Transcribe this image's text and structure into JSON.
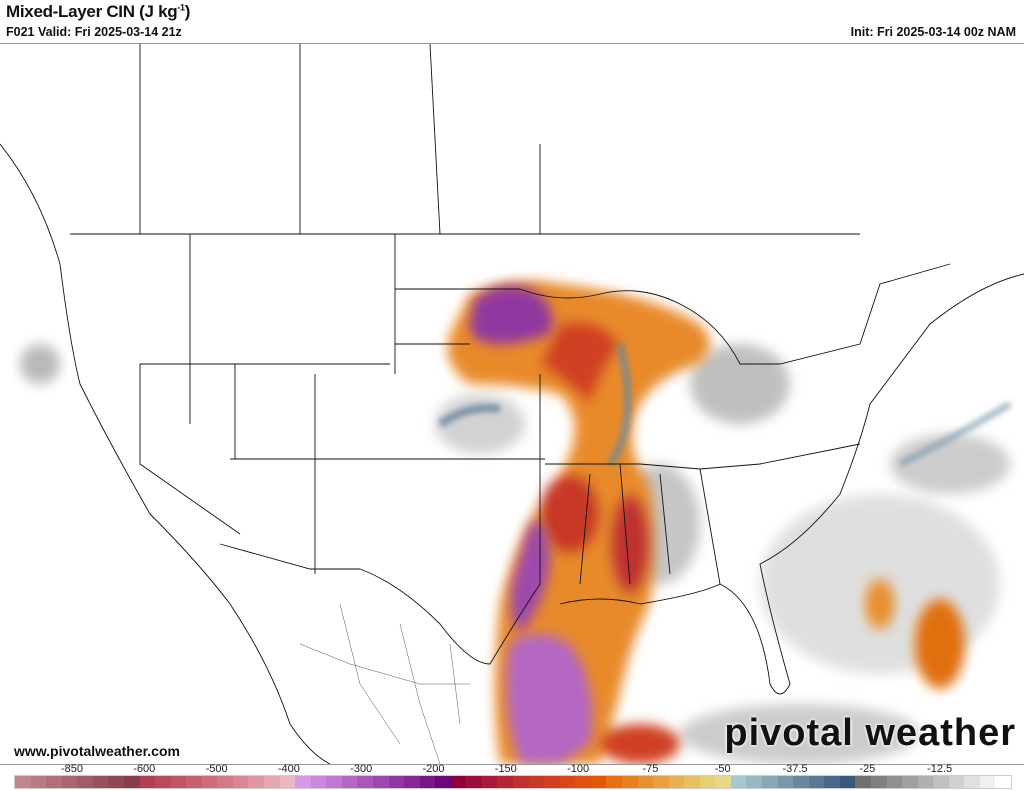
{
  "header": {
    "title": "Mixed-Layer CIN (J kg",
    "title_sup": "-1",
    "title_end": ")",
    "valid": "F021 Valid: Fri 2025-03-14 21z",
    "init": "Init: Fri 2025-03-14 00z NAM"
  },
  "footer": {
    "website": "www.pivotalweather.com",
    "watermark": "pivotal weather"
  },
  "colorbar": {
    "labels": [
      "-850",
      "-600",
      "-500",
      "-400",
      "-300",
      "-200",
      "-150",
      "-100",
      "-75",
      "-50",
      "-37.5",
      "-25",
      "-12.5"
    ],
    "colors": [
      "#c0868e",
      "#b87a84",
      "#b0707a",
      "#a86672",
      "#a05c68",
      "#98525f",
      "#904856",
      "#883e4c",
      "#b04050",
      "#b84a5a",
      "#c05565",
      "#c86070",
      "#d06c7c",
      "#d27a88",
      "#d88894",
      "#de98a2",
      "#e4a8b0",
      "#eab8c0",
      "#d898e8",
      "#cc88dc",
      "#c078d0",
      "#b468c4",
      "#a858b8",
      "#9c48ac",
      "#9038a0",
      "#842894",
      "#781888",
      "#6c087c",
      "#900040",
      "#9c0c3c",
      "#a81838",
      "#b42434",
      "#c03030",
      "#c83828",
      "#d04020",
      "#d84818",
      "#e05010",
      "#e05808",
      "#e87010",
      "#e88020",
      "#e89030",
      "#e8a040",
      "#e8b050",
      "#e8c060",
      "#e8d070",
      "#e8d888",
      "#a8c8d0",
      "#98b8c4",
      "#88a8b8",
      "#7898ac",
      "#6888a0",
      "#587894",
      "#486888",
      "#38587c",
      "#707070",
      "#808080",
      "#909090",
      "#a0a0a0",
      "#b0b0b0",
      "#c0c0c0",
      "#d0d0d0",
      "#e0e0e0",
      "#f0f0f0",
      "#ffffff"
    ]
  }
}
